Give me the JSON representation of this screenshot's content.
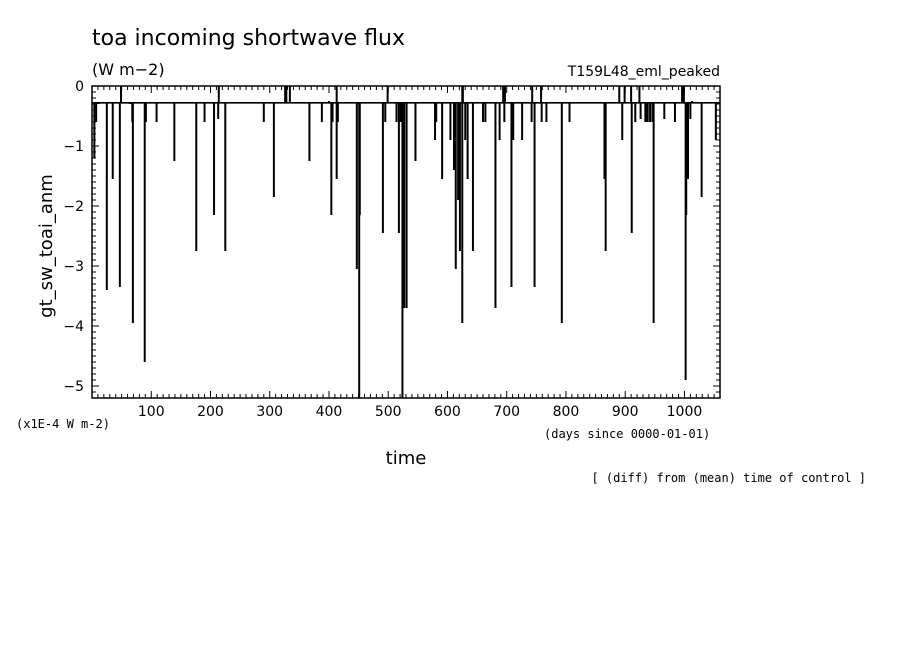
{
  "header": {
    "title": "toa incoming shortwave flux",
    "units": "(W m−2)",
    "run_name": "T159L48_eml_peaked",
    "multiplier_note": "(x1E-4 W m-2)",
    "x_axis_note": "(days since 0000-01-01)",
    "comparison_note": "[ (diff) from (mean) time of control ]"
  },
  "chart_data": {
    "type": "bar",
    "xlabel": "time",
    "ylabel": "gt_sw_toai_anm",
    "xlim": [
      0,
      1060
    ],
    "ylim": [
      -5.2,
      0
    ],
    "baseline": -0.28,
    "grid": false,
    "x_ticks": [
      100,
      200,
      300,
      400,
      500,
      600,
      700,
      800,
      900,
      1000
    ],
    "x_tick_labels": [
      "100",
      "200",
      "300",
      "400",
      "500",
      "600",
      "700",
      "800",
      "900",
      "1000"
    ],
    "y_ticks": [
      0,
      -1,
      -2,
      -3,
      -4,
      -5
    ],
    "y_tick_labels": [
      "0",
      "−1",
      "−2",
      "−3",
      "−4",
      "−5"
    ],
    "x": [
      4,
      7,
      11,
      25,
      35,
      47,
      64,
      68,
      69,
      89,
      91,
      109,
      139,
      176,
      190,
      206,
      213,
      225,
      290,
      307,
      367,
      388,
      400,
      404,
      406,
      413,
      415,
      447,
      451,
      452,
      491,
      495,
      514,
      518,
      521,
      524,
      527,
      531,
      546,
      579,
      581,
      591,
      605,
      611,
      614,
      618,
      621,
      625,
      630,
      634,
      643,
      660,
      664,
      681,
      688,
      696,
      708,
      711,
      726,
      742,
      747,
      759,
      767,
      793,
      806,
      865,
      867,
      895,
      911,
      917,
      926,
      934,
      936,
      938,
      942,
      946,
      948,
      966,
      984,
      1002,
      1003,
      1004,
      1006,
      1010,
      1013,
      1029,
      1053
    ],
    "values": [
      -1.2,
      -0.6,
      -0.3,
      -3.4,
      -1.55,
      -3.35,
      -0.3,
      -0.6,
      -3.95,
      -4.6,
      -0.6,
      -0.6,
      -1.25,
      -2.75,
      -0.6,
      -2.15,
      -0.55,
      -2.75,
      -0.6,
      -1.85,
      -1.25,
      -0.6,
      -0.25,
      -2.15,
      -0.6,
      -1.55,
      -0.6,
      -3.05,
      -5.2,
      -2.15,
      -2.45,
      -0.6,
      -0.6,
      -2.45,
      -0.6,
      -5.2,
      -3.7,
      -3.7,
      -1.25,
      -0.9,
      -0.6,
      -1.55,
      -0.9,
      -1.4,
      -3.05,
      -1.9,
      -2.75,
      -3.95,
      -0.9,
      -1.55,
      -2.75,
      -0.6,
      -0.6,
      -3.7,
      -0.9,
      -0.6,
      -3.35,
      -0.9,
      -0.9,
      -0.6,
      -3.35,
      -0.6,
      -0.6,
      -3.95,
      -0.6,
      -1.55,
      -2.75,
      -0.9,
      -2.45,
      -0.6,
      -0.55,
      -0.6,
      -0.6,
      -0.6,
      -0.6,
      -0.6,
      -3.95,
      -0.55,
      -0.6,
      -4.9,
      -2.15,
      -0.6,
      -1.55,
      -0.55,
      -0.25,
      -1.85,
      -0.9
    ],
    "up_spikes": [
      49,
      214,
      326,
      328,
      334,
      413,
      499,
      625,
      626,
      694,
      697,
      743,
      758,
      890,
      899,
      910,
      924,
      996,
      999
    ]
  }
}
